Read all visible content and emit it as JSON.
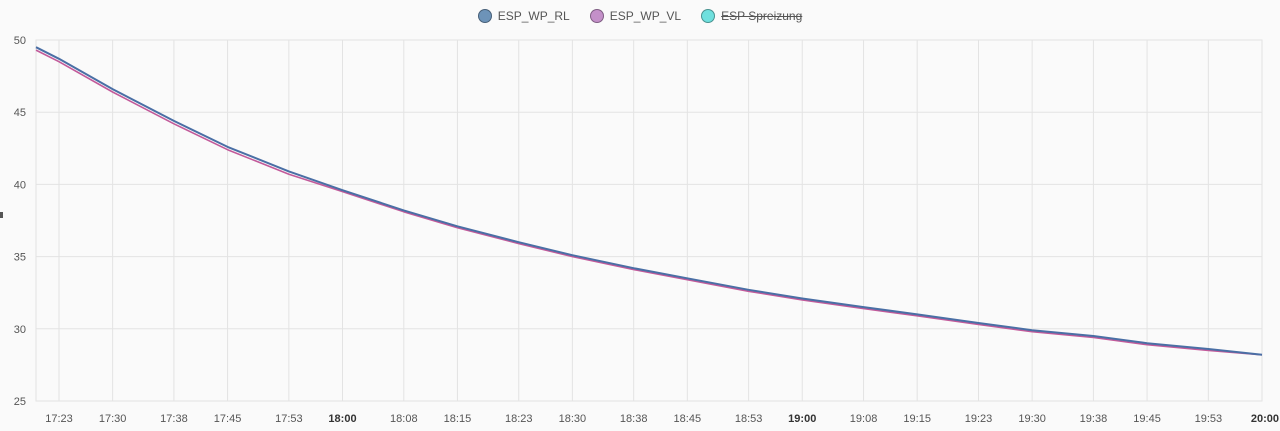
{
  "legend": [
    {
      "label": "ESP_WP_RL",
      "color": "#6d93b8",
      "hidden": false
    },
    {
      "label": "ESP_WP_VL",
      "color": "#c490c9",
      "hidden": false
    },
    {
      "label": "ESP Spreizung",
      "color": "#6fe0de",
      "hidden": true
    }
  ],
  "chart_data": {
    "type": "line",
    "title": "",
    "xlabel": "",
    "ylabel": "",
    "ylim": [
      25,
      50
    ],
    "xlim": [
      "17:20",
      "20:00"
    ],
    "grid": true,
    "legend_position": "top-center",
    "y_ticks": [
      "25",
      "30",
      "35",
      "40",
      "45",
      "50"
    ],
    "x_ticks": [
      {
        "label": "17:23",
        "bold": false
      },
      {
        "label": "17:30",
        "bold": false
      },
      {
        "label": "17:38",
        "bold": false
      },
      {
        "label": "17:45",
        "bold": false
      },
      {
        "label": "17:53",
        "bold": false
      },
      {
        "label": "18:00",
        "bold": true
      },
      {
        "label": "18:08",
        "bold": false
      },
      {
        "label": "18:15",
        "bold": false
      },
      {
        "label": "18:23",
        "bold": false
      },
      {
        "label": "18:30",
        "bold": false
      },
      {
        "label": "18:38",
        "bold": false
      },
      {
        "label": "18:45",
        "bold": false
      },
      {
        "label": "18:53",
        "bold": false
      },
      {
        "label": "19:00",
        "bold": true
      },
      {
        "label": "19:08",
        "bold": false
      },
      {
        "label": "19:15",
        "bold": false
      },
      {
        "label": "19:23",
        "bold": false
      },
      {
        "label": "19:30",
        "bold": false
      },
      {
        "label": "19:38",
        "bold": false
      },
      {
        "label": "19:45",
        "bold": false
      },
      {
        "label": "19:53",
        "bold": false
      },
      {
        "label": "20:00",
        "bold": true
      }
    ],
    "x": [
      "17:20",
      "17:23",
      "17:30",
      "17:38",
      "17:45",
      "17:53",
      "18:00",
      "18:08",
      "18:15",
      "18:23",
      "18:30",
      "18:38",
      "18:45",
      "18:53",
      "19:00",
      "19:08",
      "19:15",
      "19:23",
      "19:30",
      "19:38",
      "19:45",
      "19:53",
      "20:00"
    ],
    "series": [
      {
        "name": "ESP_WP_RL",
        "color": "#4a6fa5",
        "values": [
          49.5,
          48.7,
          46.6,
          44.4,
          42.6,
          40.9,
          39.6,
          38.2,
          37.1,
          36.0,
          35.1,
          34.2,
          33.5,
          32.7,
          32.1,
          31.5,
          31.0,
          30.4,
          29.9,
          29.5,
          29.0,
          28.6,
          28.2
        ]
      },
      {
        "name": "ESP_WP_VL",
        "color": "#c25a9a",
        "values": [
          49.3,
          48.5,
          46.4,
          44.2,
          42.4,
          40.7,
          39.5,
          38.1,
          37.0,
          35.9,
          35.0,
          34.1,
          33.4,
          32.6,
          32.0,
          31.4,
          30.9,
          30.3,
          29.8,
          29.4,
          28.9,
          28.5,
          28.2
        ]
      }
    ]
  }
}
